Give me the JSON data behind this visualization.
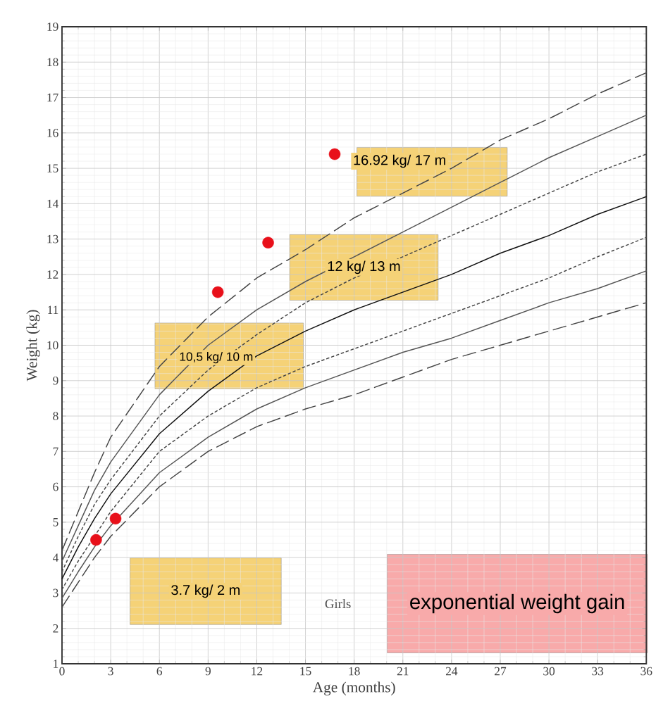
{
  "chart_data": {
    "type": "line",
    "xlabel": "Age (months)",
    "ylabel": "Weight (kg)",
    "x": [
      0,
      1,
      2,
      3,
      6,
      9,
      12,
      15,
      18,
      21,
      24,
      27,
      30,
      33,
      36
    ],
    "xlim": [
      0,
      36
    ],
    "ylim": [
      1,
      19
    ],
    "xticks": [
      0,
      3,
      6,
      9,
      12,
      15,
      18,
      21,
      24,
      27,
      30,
      33,
      36
    ],
    "yticks": [
      1,
      2,
      3,
      4,
      5,
      6,
      7,
      8,
      9,
      10,
      11,
      12,
      13,
      14,
      15,
      16,
      17,
      18,
      19
    ],
    "grid": true,
    "marker": "none",
    "series": [
      {
        "color": "#444444",
        "line_style": "dashed",
        "values": [
          4.2,
          5.3,
          6.4,
          7.4,
          9.4,
          10.8,
          11.9,
          12.7,
          13.6,
          14.3,
          15.0,
          15.8,
          16.4,
          17.1,
          17.7
        ]
      },
      {
        "color": "#555555",
        "line_style": "solid",
        "values": [
          3.9,
          4.9,
          5.9,
          6.7,
          8.6,
          10.0,
          11.0,
          11.8,
          12.5,
          13.2,
          13.9,
          14.6,
          15.3,
          15.9,
          16.5
        ]
      },
      {
        "color": "#444444",
        "line_style": "dotted",
        "values": [
          3.6,
          4.6,
          5.5,
          6.2,
          8.0,
          9.3,
          10.3,
          11.2,
          11.9,
          12.5,
          13.1,
          13.7,
          14.3,
          14.9,
          15.4
        ]
      },
      {
        "color": "#111111",
        "line_style": "solid",
        "values": [
          3.4,
          4.3,
          5.1,
          5.8,
          7.5,
          8.7,
          9.7,
          10.4,
          11.0,
          11.5,
          12.0,
          12.6,
          13.1,
          13.7,
          14.2
        ]
      },
      {
        "color": "#444444",
        "line_style": "dotted",
        "values": [
          3.1,
          3.9,
          4.6,
          5.3,
          7.0,
          8.0,
          8.8,
          9.4,
          9.9,
          10.4,
          10.9,
          11.4,
          11.9,
          12.5,
          13.05
        ]
      },
      {
        "color": "#555555",
        "line_style": "solid",
        "values": [
          2.85,
          3.6,
          4.3,
          4.9,
          6.4,
          7.4,
          8.2,
          8.8,
          9.3,
          9.8,
          10.2,
          10.7,
          11.2,
          11.6,
          12.1
        ]
      },
      {
        "color": "#444444",
        "line_style": "dashed",
        "values": [
          2.6,
          3.3,
          4.0,
          4.6,
          6.0,
          7.0,
          7.7,
          8.2,
          8.6,
          9.1,
          9.6,
          10.0,
          10.4,
          10.8,
          11.2
        ]
      },
      {
        "type": "scatter",
        "marker": "circle",
        "color": "#e8101a",
        "x": [
          2.1,
          3.3,
          9.6,
          12.7,
          16.8
        ],
        "values": [
          4.5,
          5.1,
          11.5,
          12.9,
          15.4
        ]
      }
    ],
    "annotations": [
      "16.92 kg/ 17 m",
      "12 kg/ 13 m",
      "10,5 kg/ 10 m",
      "3.7 kg/ 2 m",
      "Girls",
      "exponential weight gain"
    ]
  }
}
